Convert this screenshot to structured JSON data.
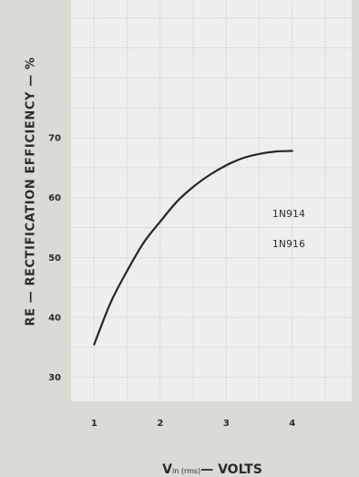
{
  "chart_data": {
    "type": "line",
    "title": "",
    "ylabel": "RE — RECTIFICATION EFFICIENCY — %",
    "xlabel": {
      "main": "V",
      "sub": "in (rms)",
      "suffix": "— VOLTS"
    },
    "xlim": [
      0.65,
      4.9
    ],
    "ylim": [
      26,
      93
    ],
    "x_ticks": [
      "1",
      "2",
      "3",
      "4"
    ],
    "y_ticks": [
      "30",
      "40",
      "50",
      "60",
      "70"
    ],
    "grid": true,
    "series": [
      {
        "name": "1N914 1N916",
        "labels": [
          "1N914",
          "1N916"
        ],
        "x": [
          1.0,
          1.25,
          1.5,
          1.75,
          2.0,
          2.25,
          2.5,
          2.75,
          3.0,
          3.25,
          3.5,
          3.75,
          4.0
        ],
        "y": [
          35.5,
          42.5,
          47.8,
          52.5,
          56.0,
          59.3,
          61.8,
          63.8,
          65.4,
          66.6,
          67.3,
          67.7,
          67.8
        ]
      }
    ]
  },
  "colors": {
    "background": "#dcdad4",
    "plot_area": "#eeeeee",
    "grid": "#c4c6c8",
    "curve": "#262626",
    "text": "#2a2a2a"
  }
}
